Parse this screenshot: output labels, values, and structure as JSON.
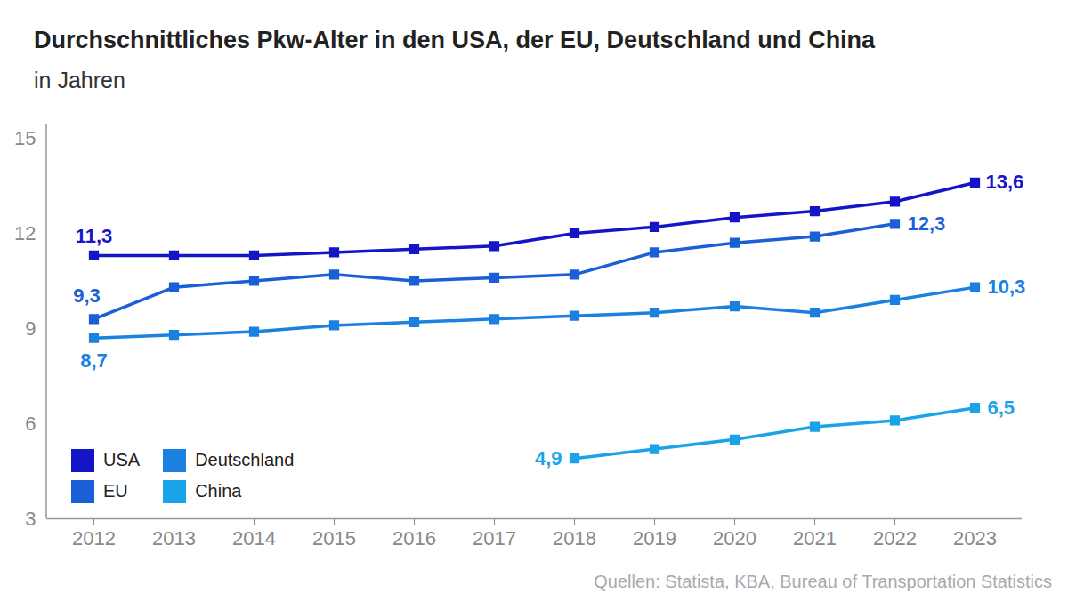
{
  "chart_data": {
    "type": "line",
    "title": "Durchschnittliches Pkw-Alter in den USA, der EU, Deutschland und China",
    "subtitle": "in Jahren",
    "source": "Quellen: Statista, KBA, Bureau of Transportation Statistics",
    "x": [
      "2012",
      "2013",
      "2014",
      "2015",
      "2016",
      "2017",
      "2018",
      "2019",
      "2020",
      "2021",
      "2022",
      "2023"
    ],
    "ylim": [
      3,
      15
    ],
    "yticks": [
      3,
      6,
      9,
      12,
      15
    ],
    "grid": false,
    "legend": "lower left",
    "marker": "square",
    "series": [
      {
        "name": "USA",
        "color": "#1515c8",
        "values": [
          11.3,
          11.3,
          11.3,
          11.4,
          11.5,
          11.6,
          12.0,
          12.2,
          12.5,
          12.7,
          13.0,
          13.6
        ],
        "value_labels": [
          "11,3",
          null,
          null,
          null,
          null,
          null,
          null,
          null,
          null,
          null,
          null,
          "13,6"
        ]
      },
      {
        "name": "EU",
        "color": "#1a5fd6",
        "values": [
          9.3,
          10.3,
          10.5,
          10.7,
          10.5,
          10.6,
          10.7,
          11.4,
          11.7,
          11.9,
          12.3,
          null
        ],
        "value_labels": [
          "9,3",
          null,
          null,
          null,
          null,
          null,
          null,
          null,
          null,
          null,
          "12,3",
          null
        ]
      },
      {
        "name": "Deutschland",
        "color": "#1b80e0",
        "values": [
          8.7,
          8.8,
          8.9,
          9.1,
          9.2,
          9.3,
          9.4,
          9.5,
          9.7,
          9.5,
          9.9,
          10.3
        ],
        "value_labels": [
          "8,7",
          null,
          null,
          null,
          null,
          null,
          null,
          null,
          null,
          null,
          null,
          "10,3"
        ]
      },
      {
        "name": "China",
        "color": "#1aa3e8",
        "values": [
          null,
          null,
          null,
          null,
          null,
          null,
          4.9,
          5.2,
          5.5,
          5.9,
          6.1,
          6.5
        ],
        "value_labels": [
          null,
          null,
          null,
          null,
          null,
          null,
          "4,9",
          null,
          null,
          null,
          null,
          "6,5"
        ]
      }
    ]
  }
}
